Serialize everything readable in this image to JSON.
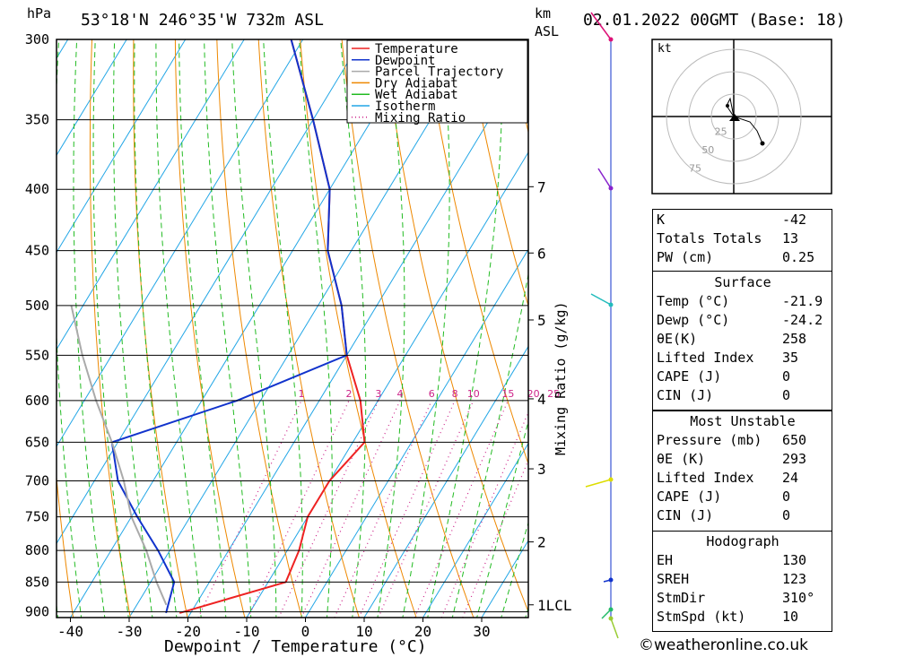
{
  "header": {
    "unit_hpa": "hPa",
    "location": "53°18'N  246°35'W  732m  ASL",
    "unit_km": "km",
    "unit_asl": "ASL",
    "datetime": "02.01.2022  00GMT  (Base: 18)"
  },
  "chart_data": {
    "type": "line",
    "subtype": "skew-T log-P sounding",
    "xlabel": "Dewpoint / Temperature (°C)",
    "ylabel": "hPa",
    "right_label": "Mixing Ratio (g/kg)",
    "pressure_ticks": [
      300,
      350,
      400,
      450,
      500,
      550,
      600,
      650,
      700,
      750,
      800,
      850,
      900
    ],
    "temp_ticks": [
      -40,
      -30,
      -20,
      -10,
      0,
      10,
      20,
      30
    ],
    "xlim": [
      -42,
      37
    ],
    "ylim": [
      910,
      300
    ],
    "height_ticks": [
      {
        "label": "7",
        "p": 398
      },
      {
        "label": "6",
        "p": 452
      },
      {
        "label": "5",
        "p": 514
      },
      {
        "label": "4",
        "p": 598
      },
      {
        "label": "3",
        "p": 684
      },
      {
        "label": "2",
        "p": 787
      },
      {
        "label": "1LCL",
        "p": 888
      }
    ],
    "mixing_ratio_labels": [
      "1",
      "2",
      "3",
      "4",
      "6",
      "8",
      "10",
      "15",
      "20",
      "25"
    ],
    "mixing_ratio_values": [
      1,
      2,
      3,
      4,
      6,
      8,
      10,
      15,
      20,
      25
    ],
    "legend": [
      "Temperature",
      "Dewpoint",
      "Parcel Trajectory",
      "Dry Adiabat",
      "Wet Adiabat",
      "Isotherm",
      "Mixing Ratio"
    ],
    "legend_position": "top-right",
    "series": [
      {
        "name": "Temperature",
        "color": "#ee2222",
        "points": [
          [
            902,
            -21.9
          ],
          [
            850,
            -7
          ],
          [
            800,
            -8
          ],
          [
            750,
            -10
          ],
          [
            700,
            -10
          ],
          [
            650,
            -8
          ],
          [
            600,
            -13
          ],
          [
            550,
            -20
          ],
          [
            500,
            -26
          ],
          [
            450,
            -34
          ],
          [
            400,
            -40
          ],
          [
            350,
            -50
          ],
          [
            300,
            -62
          ]
        ]
      },
      {
        "name": "Dewpoint",
        "color": "#1133cc",
        "points": [
          [
            902,
            -24.2
          ],
          [
            850,
            -26
          ],
          [
            800,
            -32
          ],
          [
            750,
            -39
          ],
          [
            700,
            -46
          ],
          [
            650,
            -51
          ],
          [
            600,
            -34
          ],
          [
            550,
            -20
          ],
          [
            500,
            -26
          ],
          [
            450,
            -34
          ],
          [
            400,
            -40
          ],
          [
            350,
            -50
          ],
          [
            300,
            -62
          ]
        ]
      },
      {
        "name": "Parcel Trajectory",
        "color": "#aaaaaa",
        "points": [
          [
            888,
            -25
          ],
          [
            850,
            -29
          ],
          [
            800,
            -34
          ],
          [
            750,
            -40
          ],
          [
            700,
            -45
          ],
          [
            650,
            -51
          ],
          [
            600,
            -58
          ],
          [
            550,
            -65
          ],
          [
            500,
            -72
          ]
        ]
      }
    ],
    "wind_barb_color_profile": true
  },
  "indices": {
    "rows1": [
      {
        "label": "K",
        "value": "-42"
      },
      {
        "label": "Totals Totals",
        "value": "13"
      },
      {
        "label": "PW (cm)",
        "value": "0.25"
      }
    ],
    "surface_title": "Surface",
    "surface": [
      {
        "label": "Temp (°C)",
        "value": "-21.9"
      },
      {
        "label": "Dewp (°C)",
        "value": "-24.2"
      },
      {
        "label": "θE(K)",
        "value": "258"
      },
      {
        "label": "Lifted Index",
        "value": "35"
      },
      {
        "label": "CAPE (J)",
        "value": "0"
      },
      {
        "label": "CIN (J)",
        "value": "0"
      }
    ],
    "mu_title": "Most Unstable",
    "mu": [
      {
        "label": "Pressure (mb)",
        "value": "650"
      },
      {
        "label": "θE (K)",
        "value": "293"
      },
      {
        "label": "Lifted Index",
        "value": "24"
      },
      {
        "label": "CAPE (J)",
        "value": "0"
      },
      {
        "label": "CIN (J)",
        "value": "0"
      }
    ],
    "hodo_title": "Hodograph",
    "hodo": [
      {
        "label": "EH",
        "value": "130"
      },
      {
        "label": "SREH",
        "value": "123"
      },
      {
        "label": "StmDir",
        "value": "310°"
      },
      {
        "label": "StmSpd (kt)",
        "value": "10"
      }
    ]
  },
  "hodograph": {
    "unit": "kt",
    "ring_labels": [
      "25",
      "50",
      "75"
    ]
  },
  "copyright": "©weatheronline.co.uk"
}
